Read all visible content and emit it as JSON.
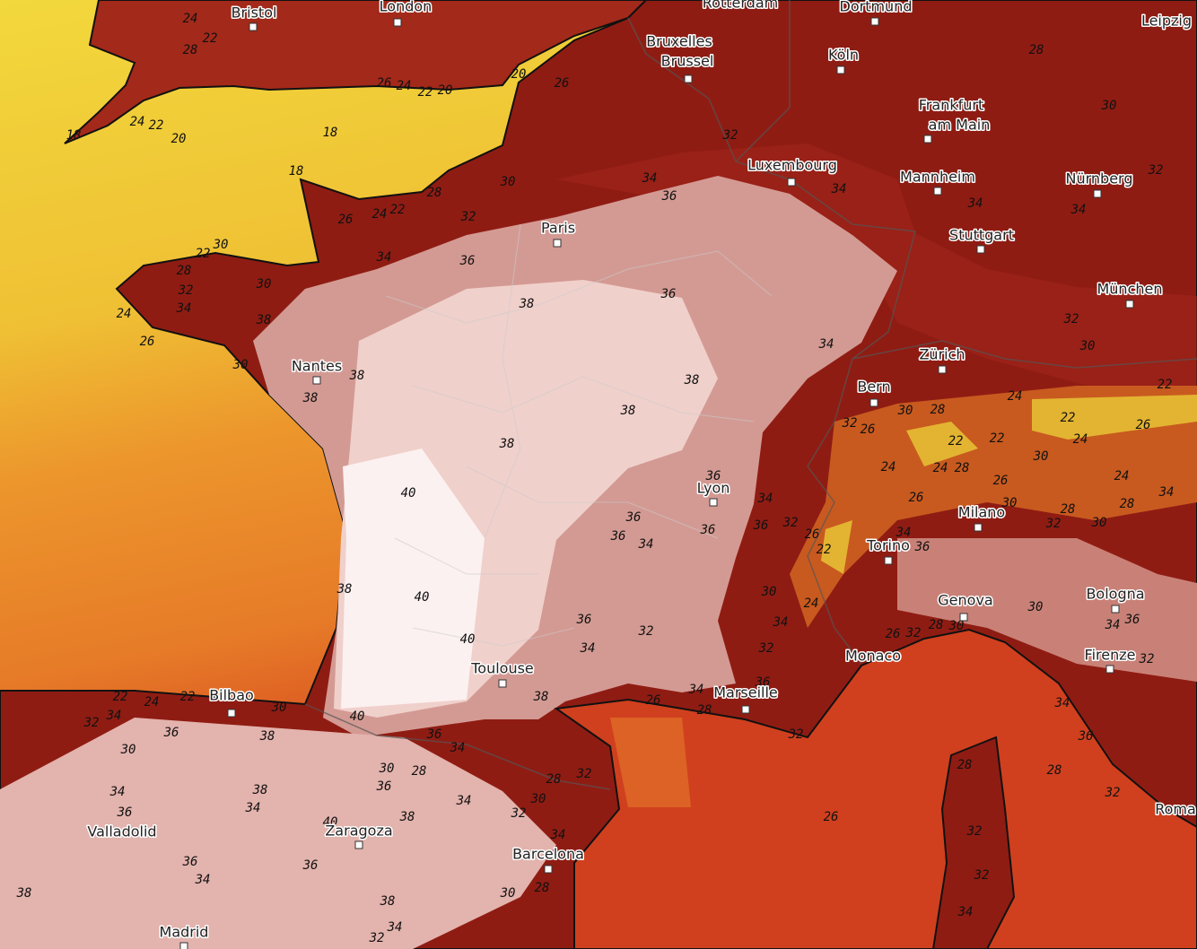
{
  "cities": [
    {
      "lines": [
        "Bristol"
      ]
    },
    {
      "lines": [
        "London"
      ]
    },
    {
      "lines": [
        "Rotterdam"
      ]
    },
    {
      "lines": [
        "Dortmund"
      ]
    },
    {
      "lines": [
        "Leipzig"
      ]
    },
    {
      "lines": [
        "Bruxelles",
        "Brussel"
      ]
    },
    {
      "lines": [
        "Köln"
      ]
    },
    {
      "lines": [
        "Frankfurt",
        "am Main"
      ]
    },
    {
      "lines": [
        "Luxembourg"
      ]
    },
    {
      "lines": [
        "Mannheim"
      ]
    },
    {
      "lines": [
        "Nürnberg"
      ]
    },
    {
      "lines": [
        "Paris"
      ]
    },
    {
      "lines": [
        "Stuttgart"
      ]
    },
    {
      "lines": [
        "München"
      ]
    },
    {
      "lines": [
        "Nantes"
      ]
    },
    {
      "lines": [
        "Zürich"
      ]
    },
    {
      "lines": [
        "Bern"
      ]
    },
    {
      "lines": [
        "Lyon"
      ]
    },
    {
      "lines": [
        "Milano"
      ]
    },
    {
      "lines": [
        "Torino"
      ]
    },
    {
      "lines": [
        "Bologna"
      ]
    },
    {
      "lines": [
        "Genova"
      ]
    },
    {
      "lines": [
        "Monaco"
      ]
    },
    {
      "lines": [
        "Firenze"
      ]
    },
    {
      "lines": [
        "Toulouse"
      ]
    },
    {
      "lines": [
        "Marseille"
      ]
    },
    {
      "lines": [
        "Bilbao"
      ]
    },
    {
      "lines": [
        "Valladolid"
      ]
    },
    {
      "lines": [
        "Zaragoza"
      ]
    },
    {
      "lines": [
        "Barcelona"
      ]
    },
    {
      "lines": [
        "Roma"
      ]
    },
    {
      "lines": [
        "Madrid"
      ]
    }
  ],
  "isotherm_labels": [
    24,
    22,
    28,
    20,
    26,
    26,
    24,
    22,
    20,
    18,
    24,
    22,
    20,
    18,
    18,
    30,
    28,
    32,
    26,
    24,
    22,
    34,
    36,
    32,
    28,
    30,
    32,
    34,
    34,
    34,
    30,
    22,
    28,
    32,
    34,
    30,
    34,
    36,
    24,
    26,
    30,
    38,
    38,
    38,
    38,
    36,
    34,
    38,
    38,
    38,
    32,
    30,
    24,
    22,
    26,
    24,
    22,
    30,
    28,
    26,
    32,
    22,
    22,
    30,
    24,
    24,
    28,
    26,
    26,
    30,
    24,
    28,
    34,
    28,
    30,
    32,
    40,
    36,
    34,
    36,
    36,
    34,
    36,
    36,
    32,
    26,
    22,
    34,
    36,
    38,
    40,
    40,
    30,
    34,
    24,
    36,
    34,
    32,
    32,
    36,
    28,
    30,
    26,
    32,
    30,
    34,
    36,
    32,
    38,
    26,
    34,
    28,
    32,
    22,
    24,
    22,
    30,
    40,
    32,
    34,
    36,
    30,
    38,
    36,
    34,
    30,
    28,
    36,
    34,
    32,
    30,
    28,
    32,
    34,
    36,
    38,
    34,
    38,
    40,
    34,
    36,
    28,
    32,
    28,
    26,
    32,
    32,
    34,
    36,
    34,
    36,
    38,
    38,
    30,
    28,
    34,
    34,
    32
  ]
}
